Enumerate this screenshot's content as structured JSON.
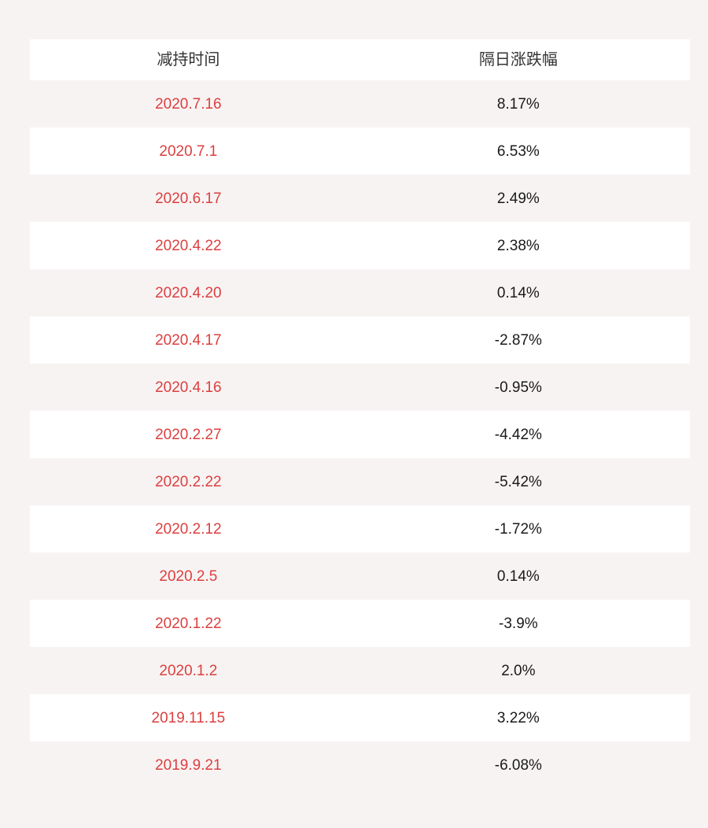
{
  "page": {
    "background": "#f8f3f3"
  },
  "colors": {
    "date_red": "#dc3f3f",
    "value_black": "#1a1a1a",
    "header_text": "#333333",
    "row_white": "#ffffff"
  },
  "chart_data": {
    "type": "table",
    "columns": [
      "减持时间",
      "隔日涨跌幅"
    ],
    "rows": [
      [
        "2020.7.16",
        "8.17%"
      ],
      [
        "2020.7.1",
        "6.53%"
      ],
      [
        "2020.6.17",
        "2.49%"
      ],
      [
        "2020.4.22",
        "2.38%"
      ],
      [
        "2020.4.20",
        "0.14%"
      ],
      [
        "2020.4.17",
        "-2.87%"
      ],
      [
        "2020.4.16",
        "-0.95%"
      ],
      [
        "2020.2.27",
        "-4.42%"
      ],
      [
        "2020.2.22",
        "-5.42%"
      ],
      [
        "2020.2.12",
        "-1.72%"
      ],
      [
        "2020.2.5",
        "0.14%"
      ],
      [
        "2020.1.22",
        "-3.9%"
      ],
      [
        "2020.1.2",
        "2.0%"
      ],
      [
        "2019.11.15",
        "3.22%"
      ],
      [
        "2019.9.21",
        "-6.08%"
      ]
    ],
    "layout": {
      "row_striping": [
        "page-bg",
        "white"
      ],
      "column_alignment": "center"
    }
  }
}
